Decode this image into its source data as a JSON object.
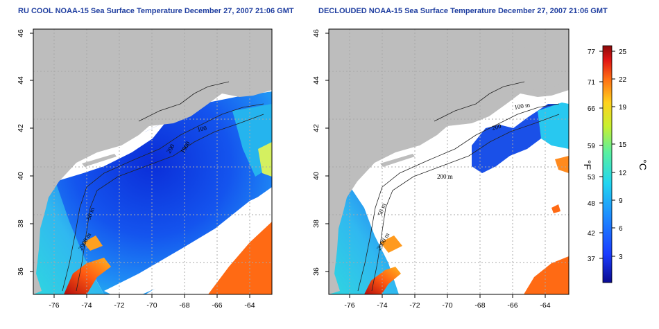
{
  "maps": [
    {
      "title": "RU COOL NOAA-15 Sea Surface Temperature December 27, 2007 21:06 GMT",
      "contour_labels": [
        "100",
        "200",
        "1000",
        "50 m",
        "2000 m"
      ]
    },
    {
      "title": "DECLOUDED NOAA-15 Sea Surface Temperature December 27, 2007 21:06 GMT",
      "contour_labels": [
        "100 m",
        "200",
        "200 m",
        "50 m",
        "2000 m"
      ]
    }
  ],
  "axes": {
    "x_ticks": [
      "-76",
      "-74",
      "-72",
      "-70",
      "-68",
      "-66",
      "-64"
    ],
    "y_ticks": [
      "36",
      "38",
      "40",
      "42",
      "44",
      "46"
    ]
  },
  "colorbar": {
    "fahrenheit_labels": [
      "77",
      "71",
      "66",
      "59",
      "53",
      "48",
      "42",
      "37"
    ],
    "celsius_labels": [
      "25",
      "22",
      "19",
      "15",
      "12",
      "9",
      "6",
      "3"
    ],
    "fahrenheit_unit": "°F",
    "celsius_unit": "°C"
  },
  "colors": {
    "land": "#bdbdbd",
    "cloud": "#ffffff",
    "title": "#1f3ea0",
    "grid": "#a8a8a8"
  }
}
